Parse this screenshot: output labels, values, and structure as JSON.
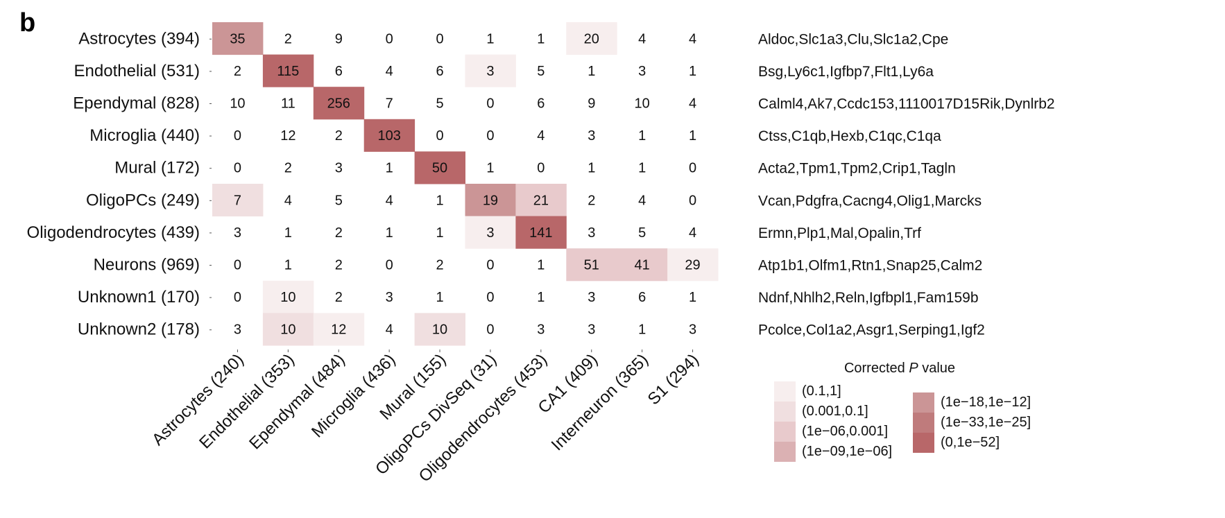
{
  "panel_label": "b",
  "legend": {
    "title_prefix": "Corrected ",
    "title_italic": "P",
    "title_suffix": " value",
    "levels": [
      {
        "label": "(0.1,1]",
        "color": "#f7eeee"
      },
      {
        "label": "(0.001,0.1]",
        "color": "#f0dfe0"
      },
      {
        "label": "(1e−06,0.001]",
        "color": "#e8cacc"
      },
      {
        "label": "(1e−09,1e−06]",
        "color": "#dbb1b3"
      },
      {
        "label": "(1e−18,1e−12]",
        "color": "#cb9596"
      },
      {
        "label": "(1e−33,1e−25]",
        "color": "#bf7b7c"
      },
      {
        "label": "(0,1e−52]",
        "color": "#b86769"
      }
    ]
  },
  "chart_data": {
    "type": "heatmap",
    "rows": [
      "Astrocytes (394)",
      "Endothelial (531)",
      "Ependymal (828)",
      "Microglia (440)",
      "Mural (172)",
      "OligoPCs (249)",
      "Oligodendrocytes (439)",
      "Neurons (969)",
      "Unknown1 (170)",
      "Unknown2 (178)"
    ],
    "columns": [
      "Astrocytes (240)",
      "Endothelial (353)",
      "Ependymal (484)",
      "Microglia (436)",
      "Mural (155)",
      "OligoPCs DivSeq (31)",
      "Oligodendrocytes (453)",
      "CA1 (409)",
      "Interneuron (365)",
      "S1 (294)"
    ],
    "values": [
      [
        35,
        2,
        9,
        0,
        0,
        1,
        1,
        20,
        4,
        4
      ],
      [
        2,
        115,
        6,
        4,
        6,
        3,
        5,
        1,
        3,
        1
      ],
      [
        10,
        11,
        256,
        7,
        5,
        0,
        6,
        9,
        10,
        4
      ],
      [
        0,
        12,
        2,
        103,
        0,
        0,
        4,
        3,
        1,
        1
      ],
      [
        0,
        2,
        3,
        1,
        50,
        1,
        0,
        1,
        1,
        0
      ],
      [
        7,
        4,
        5,
        4,
        1,
        19,
        21,
        2,
        4,
        0
      ],
      [
        3,
        1,
        2,
        1,
        1,
        3,
        141,
        3,
        5,
        4
      ],
      [
        0,
        1,
        2,
        0,
        2,
        0,
        1,
        51,
        41,
        29
      ],
      [
        0,
        10,
        2,
        3,
        1,
        0,
        1,
        3,
        6,
        1
      ],
      [
        3,
        10,
        12,
        4,
        10,
        0,
        3,
        3,
        1,
        3
      ]
    ],
    "pvalue_level": [
      [
        4,
        -1,
        -1,
        -1,
        -1,
        -1,
        -1,
        0,
        -1,
        -1
      ],
      [
        -1,
        6,
        -1,
        -1,
        -1,
        0,
        -1,
        -1,
        -1,
        -1
      ],
      [
        -1,
        -1,
        6,
        -1,
        -1,
        -1,
        -1,
        -1,
        -1,
        -1
      ],
      [
        -1,
        -1,
        -1,
        6,
        -1,
        -1,
        -1,
        -1,
        -1,
        -1
      ],
      [
        -1,
        -1,
        -1,
        -1,
        6,
        -1,
        -1,
        -1,
        -1,
        -1
      ],
      [
        1,
        -1,
        -1,
        -1,
        -1,
        4,
        2,
        -1,
        -1,
        -1
      ],
      [
        -1,
        -1,
        -1,
        -1,
        -1,
        0,
        6,
        -1,
        -1,
        -1
      ],
      [
        -1,
        -1,
        -1,
        -1,
        -1,
        -1,
        -1,
        2,
        2,
        0
      ],
      [
        -1,
        0,
        -1,
        -1,
        -1,
        -1,
        -1,
        -1,
        -1,
        -1
      ],
      [
        -1,
        1,
        0,
        -1,
        1,
        -1,
        -1,
        -1,
        -1,
        -1
      ]
    ],
    "marker_genes": [
      "Aldoc,Slc1a3,Clu,Slc1a2,Cpe",
      "Bsg,Ly6c1,Igfbp7,Flt1,Ly6a",
      "Calml4,Ak7,Ccdc153,1110017D15Rik,Dynlrb2",
      "Ctss,C1qb,Hexb,C1qc,C1qa",
      "Acta2,Tpm1,Tpm2,Crip1,Tagln",
      "Vcan,Pdgfra,Cacng4,Olig1,Marcks",
      "Ermn,Plp1,Mal,Opalin,Trf",
      "Atp1b1,Olfm1,Rtn1,Snap25,Calm2",
      "Ndnf,Nhlh2,Reln,Igfbpl1,Fam159b",
      "Pcolce,Col1a2,Asgr1,Serping1,Igf2"
    ]
  }
}
